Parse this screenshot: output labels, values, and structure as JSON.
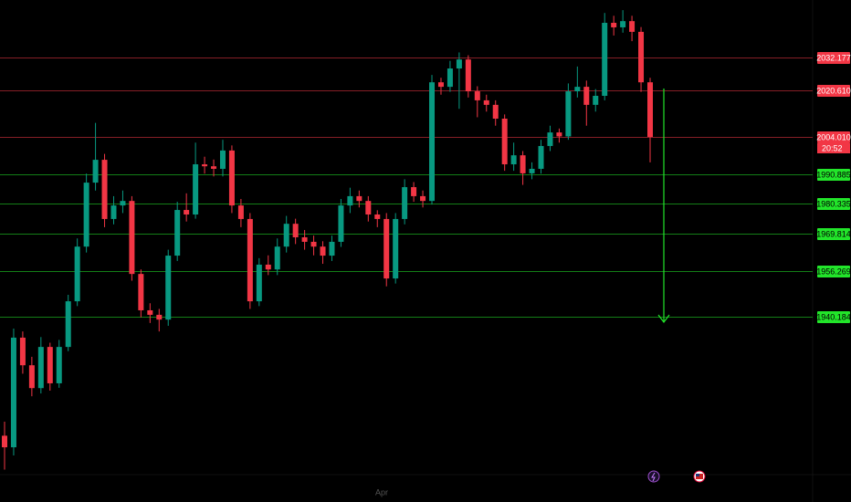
{
  "chart_data": {
    "type": "candlestick",
    "ylim": [
      1884.2,
      2052.6
    ],
    "up_color": "#089981",
    "down_color": "#f23645",
    "open": [
      1898,
      1893.9,
      1932.8,
      1923.0,
      1914.9,
      1929.5,
      1916.6,
      1929.5,
      1945.7,
      1965.1,
      1987.8,
      1995.9,
      1974.9,
      1979.7,
      1981.3,
      1955.4,
      1942.5,
      1940.9,
      1939.2,
      1961.9,
      1978.1,
      1976.5,
      1994.3,
      1993.6,
      1992.7,
      1999.2,
      1979.7,
      1974.9,
      1945.7,
      1958.7,
      1957.0,
      1965.1,
      1973.2,
      1968.4,
      1966.8,
      1965.1,
      1961.9,
      1966.8,
      1979.7,
      1983.0,
      1981.3,
      1976.5,
      1974.9,
      1953.8,
      1974.9,
      1986.2,
      1983.0,
      1981.3,
      2023.4,
      2021.8,
      2028.3,
      2031.5,
      2020.2,
      2017.0,
      2015.4,
      2010.5,
      1994.3,
      1997.5,
      1991.1,
      1992.7,
      2000.8,
      2005.6,
      2004.2,
      2020.2,
      2021.8,
      2015.4,
      2018.6,
      2044.5,
      2042.9,
      2045.1,
      2041.3,
      2023.4
    ],
    "high": [
      1903,
      1936,
      1935,
      1926,
      1933,
      1931,
      1932,
      1948,
      1968,
      1991,
      2009,
      1998,
      1983,
      1985,
      1983,
      1957,
      1945,
      1943,
      1964,
      1981,
      1984,
      2002,
      1997,
      1996,
      2003,
      2001,
      1982,
      1977,
      1961,
      1962,
      1968,
      1976,
      1975,
      1971,
      1969,
      1967,
      1969,
      1982,
      1986,
      1985,
      1983,
      1978,
      1977,
      1977,
      1989,
      1988,
      1985,
      2026,
      2025,
      2031,
      2034,
      2033,
      2022,
      2019,
      2017,
      2012,
      2002,
      1999,
      1995,
      2003,
      2008,
      2007,
      2023,
      2029,
      2024,
      2021,
      2048,
      2047,
      2049,
      2047,
      2043,
      2025
    ],
    "low": [
      1886,
      1891,
      1920,
      1912,
      1913,
      1914,
      1915,
      1928,
      1944,
      1963,
      1985,
      1972,
      1973,
      1977,
      1953,
      1940,
      1938,
      1935,
      1937,
      1960,
      1974,
      1975,
      1991,
      1990,
      1990,
      1977,
      1972,
      1943,
      1944,
      1955,
      1955,
      1963,
      1966,
      1964,
      1962,
      1959,
      1960,
      1965,
      1977,
      1979,
      1974,
      1972,
      1951,
      1952,
      1973,
      1981,
      1979,
      1980,
      2019,
      2020,
      2014,
      2018,
      2011,
      2013,
      2008,
      1992,
      1992,
      1987,
      1989,
      1991,
      1999,
      2002,
      2003,
      2018,
      2008,
      2013,
      2017,
      2040,
      2041,
      2038,
      2020,
      1995
    ],
    "close": [
      1893.9,
      1932.8,
      1923.0,
      1914.9,
      1929.5,
      1916.6,
      1929.5,
      1945.7,
      1965.1,
      1987.8,
      1995.9,
      1974.9,
      1979.7,
      1981.3,
      1955.4,
      1942.5,
      1940.9,
      1939.2,
      1961.9,
      1978.1,
      1976.5,
      1994.3,
      1993.6,
      1992.7,
      1999.2,
      1979.7,
      1974.9,
      1945.7,
      1958.7,
      1957.0,
      1965.1,
      1973.2,
      1968.4,
      1966.8,
      1965.1,
      1961.9,
      1966.8,
      1979.7,
      1983.0,
      1981.3,
      1976.5,
      1974.9,
      1953.8,
      1974.9,
      1986.2,
      1983.0,
      1981.3,
      2023.4,
      2021.8,
      2028.3,
      2031.5,
      2020.2,
      2017.0,
      2015.4,
      2010.5,
      1994.3,
      1997.5,
      1991.1,
      1992.7,
      2000.8,
      2005.6,
      2004.2,
      2020.2,
      2021.8,
      2015.4,
      2018.6,
      2044.5,
      2042.9,
      2045.1,
      2041.3,
      2023.4,
      2004.0
    ],
    "levels": [
      {
        "value": 2032.177,
        "label": "2032.177",
        "color": "#f23645"
      },
      {
        "value": 2020.61,
        "label": "2020.610",
        "color": "#f23645"
      },
      {
        "value": 2004.01,
        "label": "2004.010",
        "color": "#f23645"
      },
      {
        "value": 1990.885,
        "label": "1990.885",
        "color": "#22e52a"
      },
      {
        "value": 1980.335,
        "label": "1980.335",
        "color": "#22e52a"
      },
      {
        "value": 1969.814,
        "label": "1969.814",
        "color": "#22e52a"
      },
      {
        "value": 1956.269,
        "label": "1956.269",
        "color": "#22e52a"
      },
      {
        "value": 1940.184,
        "label": "1940.184",
        "color": "#22e52a"
      }
    ],
    "countdown": "20:52",
    "x_label": "Apr"
  }
}
